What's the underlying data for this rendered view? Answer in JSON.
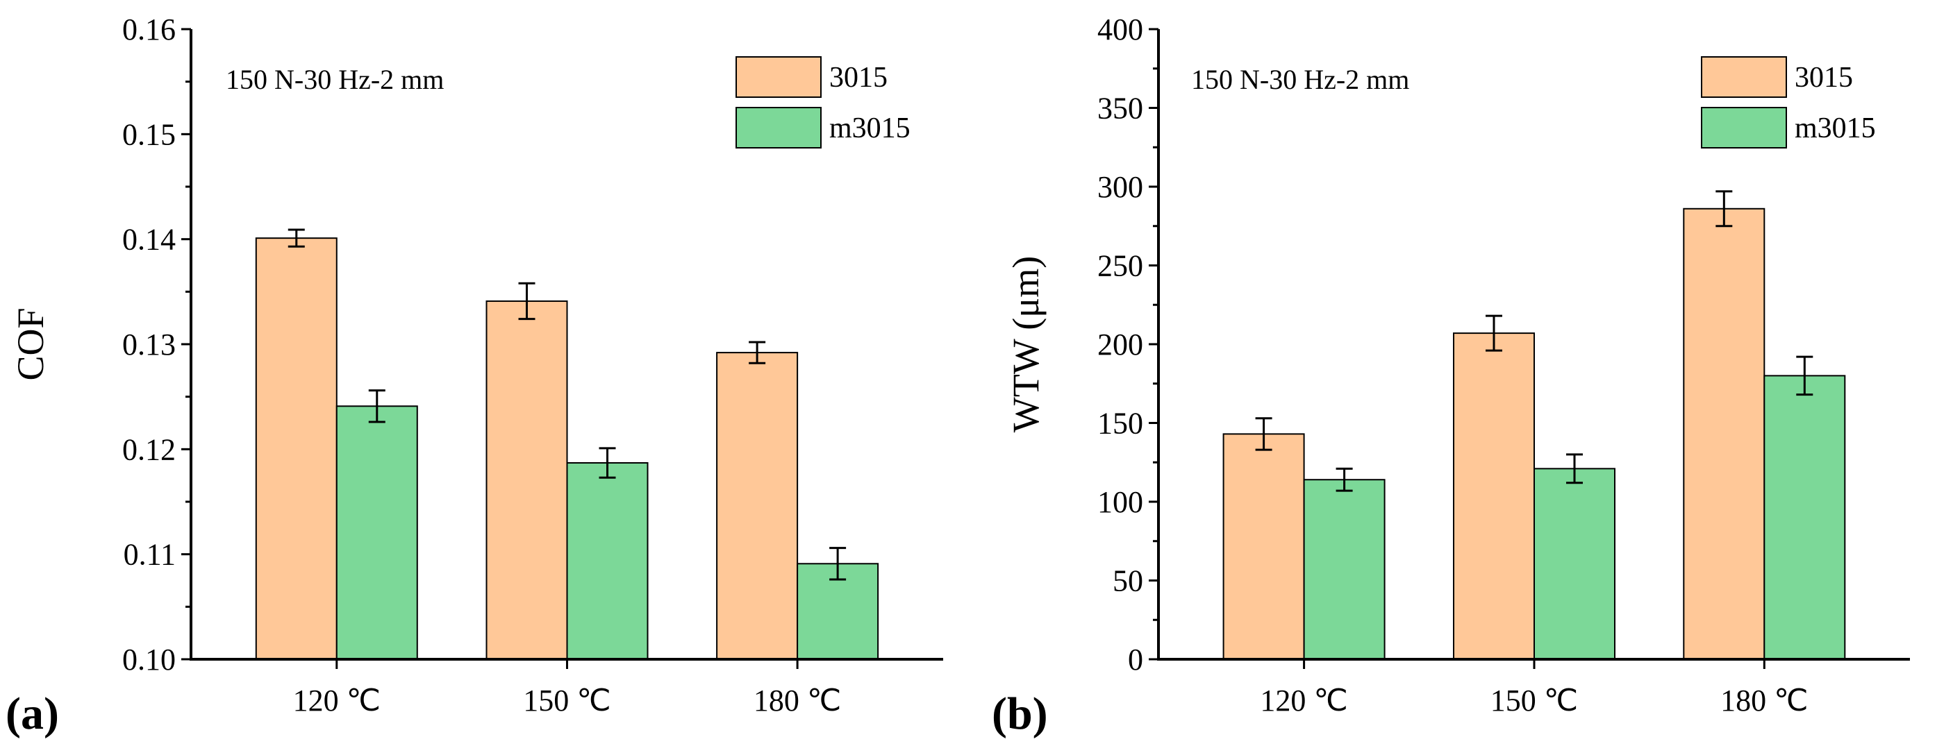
{
  "colors": {
    "3015": "#FFC898",
    "m3015": "#7CD898",
    "axis": "#000000"
  },
  "chart_data": [
    {
      "type": "bar",
      "panel_label": "(a)",
      "annotation": "150 N-30 Hz-2 mm",
      "categories": [
        "120 ℃",
        "150 ℃",
        "180 ℃"
      ],
      "ylabel": "COF",
      "xlabel": "",
      "ylim": [
        0.1,
        0.16
      ],
      "yticks": [
        "0.10",
        "0.11",
        "0.12",
        "0.13",
        "0.14",
        "0.15",
        "0.16"
      ],
      "ytick_values": [
        0.1,
        0.11,
        0.12,
        0.13,
        0.14,
        0.15,
        0.16
      ],
      "legend_position": "top-right",
      "series": [
        {
          "name": "3015",
          "values": [
            0.1401,
            0.1341,
            0.1292
          ],
          "errors": [
            0.0008,
            0.0017,
            0.001
          ]
        },
        {
          "name": "m3015",
          "values": [
            0.1241,
            0.1187,
            0.1091
          ],
          "errors": [
            0.0015,
            0.0014,
            0.0015
          ]
        }
      ]
    },
    {
      "type": "bar",
      "panel_label": "(b)",
      "annotation": "150 N-30 Hz-2 mm",
      "categories": [
        "120 ℃",
        "150 ℃",
        "180 ℃"
      ],
      "ylabel": "WTW (μm)",
      "xlabel": "",
      "ylim": [
        0,
        400
      ],
      "yticks": [
        "0",
        "50",
        "100",
        "150",
        "200",
        "250",
        "300",
        "350",
        "400"
      ],
      "ytick_values": [
        0,
        50,
        100,
        150,
        200,
        250,
        300,
        350,
        400
      ],
      "legend_position": "top-right",
      "series": [
        {
          "name": "3015",
          "values": [
            143,
            207,
            286
          ],
          "errors": [
            10,
            11,
            11
          ]
        },
        {
          "name": "m3015",
          "values": [
            114,
            121,
            180
          ],
          "errors": [
            7,
            9,
            12
          ]
        }
      ]
    }
  ]
}
